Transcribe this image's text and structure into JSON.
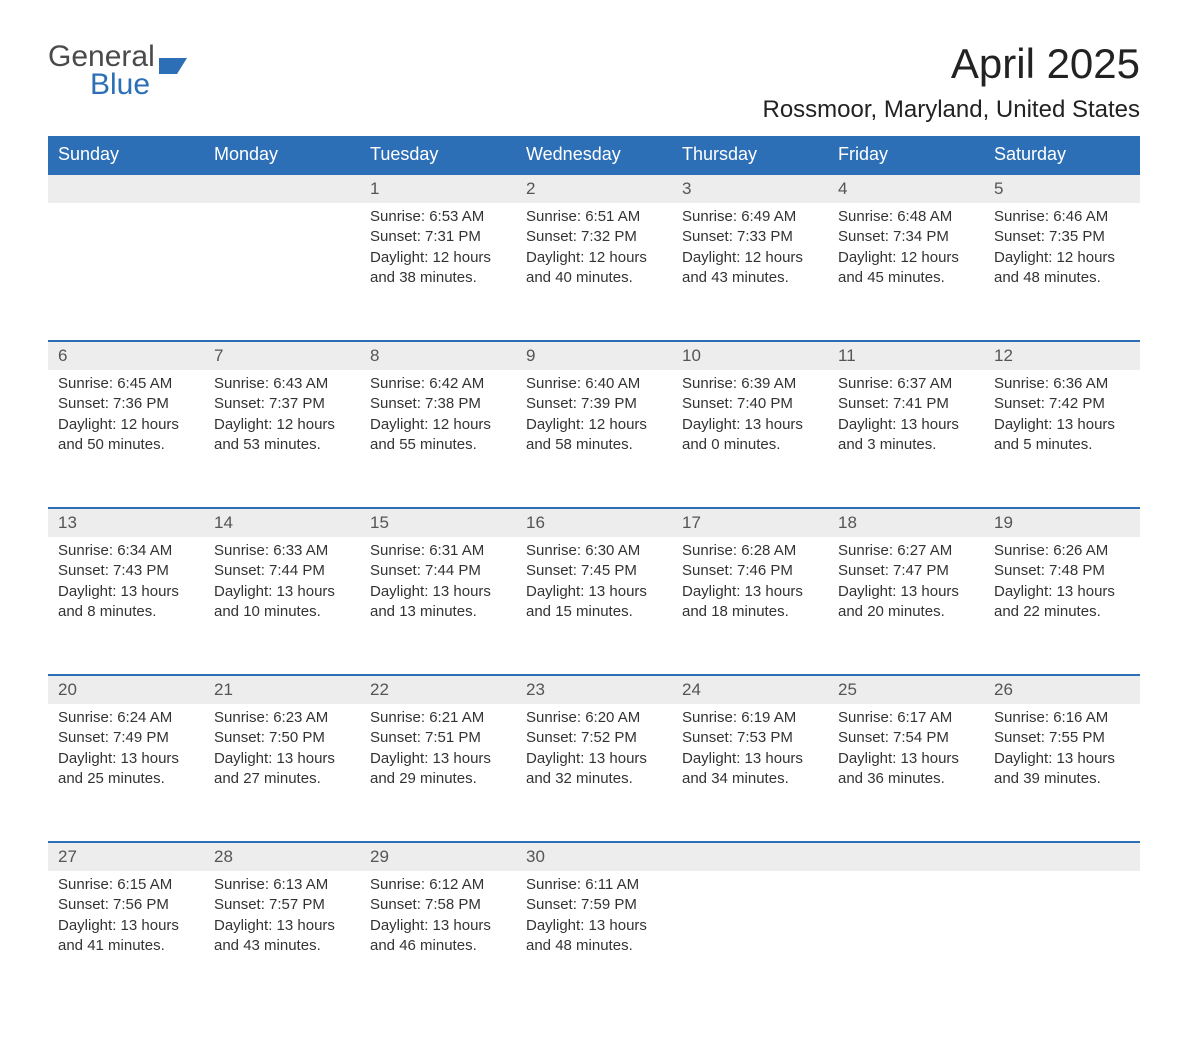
{
  "logo": {
    "word1": "General",
    "word2": "Blue",
    "shape_color": "#2d6fb7"
  },
  "title": "April 2025",
  "location": "Rossmoor, Maryland, United States",
  "colors": {
    "header_bg": "#2d6fb7",
    "header_text": "#ffffff",
    "daynum_bg": "#ededed",
    "border_top": "#2d6fb7",
    "body_text": "#333333"
  },
  "day_names": [
    "Sunday",
    "Monday",
    "Tuesday",
    "Wednesday",
    "Thursday",
    "Friday",
    "Saturday"
  ],
  "weeks": [
    [
      null,
      null,
      {
        "n": "1",
        "sr": "6:53 AM",
        "ss": "7:31 PM",
        "dl": "12 hours and 38 minutes."
      },
      {
        "n": "2",
        "sr": "6:51 AM",
        "ss": "7:32 PM",
        "dl": "12 hours and 40 minutes."
      },
      {
        "n": "3",
        "sr": "6:49 AM",
        "ss": "7:33 PM",
        "dl": "12 hours and 43 minutes."
      },
      {
        "n": "4",
        "sr": "6:48 AM",
        "ss": "7:34 PM",
        "dl": "12 hours and 45 minutes."
      },
      {
        "n": "5",
        "sr": "6:46 AM",
        "ss": "7:35 PM",
        "dl": "12 hours and 48 minutes."
      }
    ],
    [
      {
        "n": "6",
        "sr": "6:45 AM",
        "ss": "7:36 PM",
        "dl": "12 hours and 50 minutes."
      },
      {
        "n": "7",
        "sr": "6:43 AM",
        "ss": "7:37 PM",
        "dl": "12 hours and 53 minutes."
      },
      {
        "n": "8",
        "sr": "6:42 AM",
        "ss": "7:38 PM",
        "dl": "12 hours and 55 minutes."
      },
      {
        "n": "9",
        "sr": "6:40 AM",
        "ss": "7:39 PM",
        "dl": "12 hours and 58 minutes."
      },
      {
        "n": "10",
        "sr": "6:39 AM",
        "ss": "7:40 PM",
        "dl": "13 hours and 0 minutes."
      },
      {
        "n": "11",
        "sr": "6:37 AM",
        "ss": "7:41 PM",
        "dl": "13 hours and 3 minutes."
      },
      {
        "n": "12",
        "sr": "6:36 AM",
        "ss": "7:42 PM",
        "dl": "13 hours and 5 minutes."
      }
    ],
    [
      {
        "n": "13",
        "sr": "6:34 AM",
        "ss": "7:43 PM",
        "dl": "13 hours and 8 minutes."
      },
      {
        "n": "14",
        "sr": "6:33 AM",
        "ss": "7:44 PM",
        "dl": "13 hours and 10 minutes."
      },
      {
        "n": "15",
        "sr": "6:31 AM",
        "ss": "7:44 PM",
        "dl": "13 hours and 13 minutes."
      },
      {
        "n": "16",
        "sr": "6:30 AM",
        "ss": "7:45 PM",
        "dl": "13 hours and 15 minutes."
      },
      {
        "n": "17",
        "sr": "6:28 AM",
        "ss": "7:46 PM",
        "dl": "13 hours and 18 minutes."
      },
      {
        "n": "18",
        "sr": "6:27 AM",
        "ss": "7:47 PM",
        "dl": "13 hours and 20 minutes."
      },
      {
        "n": "19",
        "sr": "6:26 AM",
        "ss": "7:48 PM",
        "dl": "13 hours and 22 minutes."
      }
    ],
    [
      {
        "n": "20",
        "sr": "6:24 AM",
        "ss": "7:49 PM",
        "dl": "13 hours and 25 minutes."
      },
      {
        "n": "21",
        "sr": "6:23 AM",
        "ss": "7:50 PM",
        "dl": "13 hours and 27 minutes."
      },
      {
        "n": "22",
        "sr": "6:21 AM",
        "ss": "7:51 PM",
        "dl": "13 hours and 29 minutes."
      },
      {
        "n": "23",
        "sr": "6:20 AM",
        "ss": "7:52 PM",
        "dl": "13 hours and 32 minutes."
      },
      {
        "n": "24",
        "sr": "6:19 AM",
        "ss": "7:53 PM",
        "dl": "13 hours and 34 minutes."
      },
      {
        "n": "25",
        "sr": "6:17 AM",
        "ss": "7:54 PM",
        "dl": "13 hours and 36 minutes."
      },
      {
        "n": "26",
        "sr": "6:16 AM",
        "ss": "7:55 PM",
        "dl": "13 hours and 39 minutes."
      }
    ],
    [
      {
        "n": "27",
        "sr": "6:15 AM",
        "ss": "7:56 PM",
        "dl": "13 hours and 41 minutes."
      },
      {
        "n": "28",
        "sr": "6:13 AM",
        "ss": "7:57 PM",
        "dl": "13 hours and 43 minutes."
      },
      {
        "n": "29",
        "sr": "6:12 AM",
        "ss": "7:58 PM",
        "dl": "13 hours and 46 minutes."
      },
      {
        "n": "30",
        "sr": "6:11 AM",
        "ss": "7:59 PM",
        "dl": "13 hours and 48 minutes."
      },
      null,
      null,
      null
    ]
  ],
  "labels": {
    "sunrise": "Sunrise: ",
    "sunset": "Sunset: ",
    "daylight": "Daylight: "
  }
}
